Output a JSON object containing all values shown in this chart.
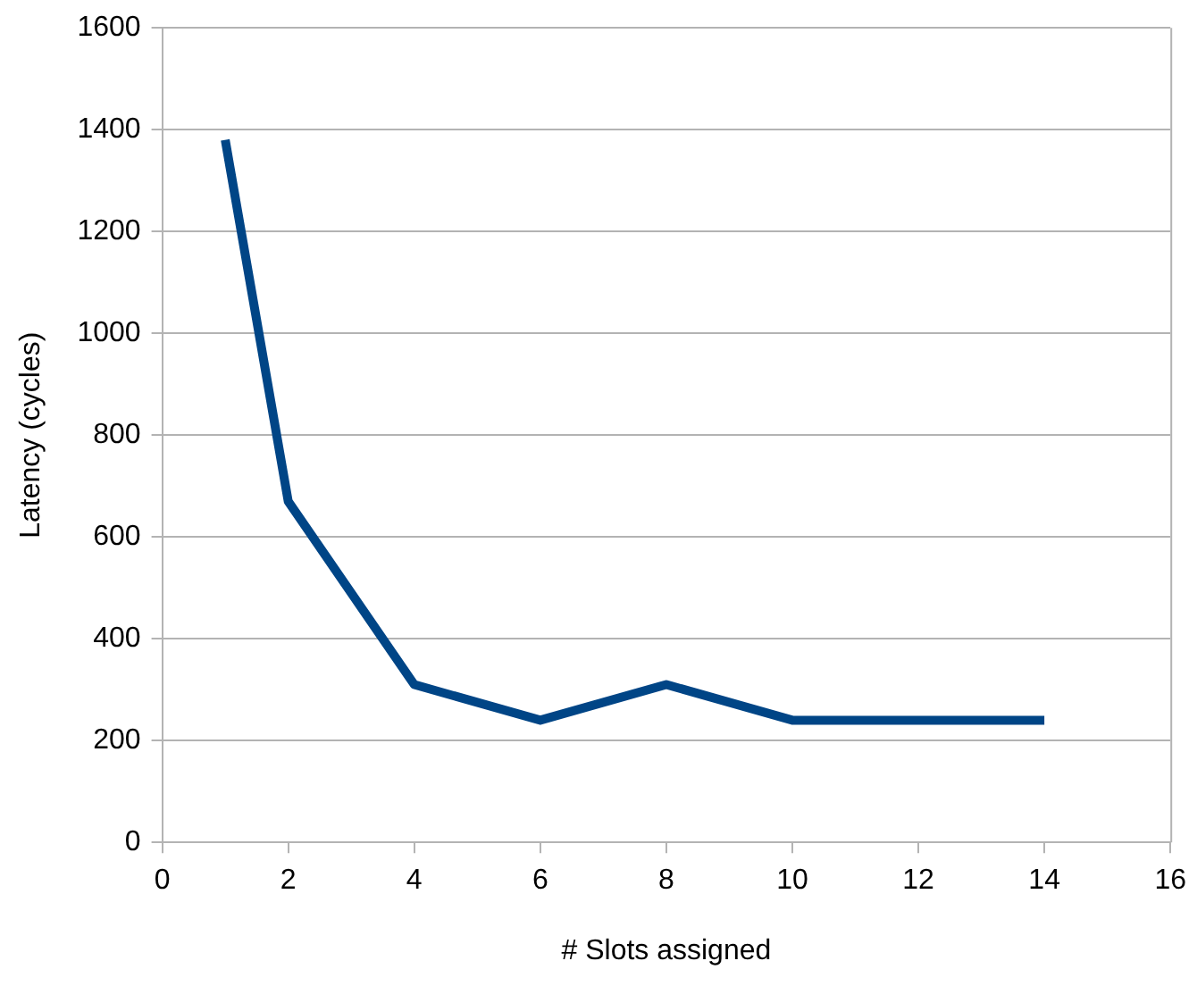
{
  "chart_data": {
    "type": "line",
    "xlabel": "# Slots assigned",
    "ylabel": "Latency (cycles)",
    "x": [
      1,
      2,
      4,
      6,
      8,
      10,
      12,
      14
    ],
    "series": [
      {
        "color": "#004586",
        "values": [
          1380,
          670,
          310,
          240,
          310,
          240,
          240,
          240
        ]
      }
    ],
    "xlim": [
      0,
      16
    ],
    "xticks": [
      0,
      2,
      4,
      6,
      8,
      10,
      12,
      14,
      16
    ],
    "ylim": [
      0,
      1600
    ],
    "yticks": [
      0,
      200,
      400,
      600,
      800,
      1000,
      1200,
      1400,
      1600
    ],
    "grid": "y",
    "legend": false,
    "marker": "none",
    "line_style": "solid"
  }
}
